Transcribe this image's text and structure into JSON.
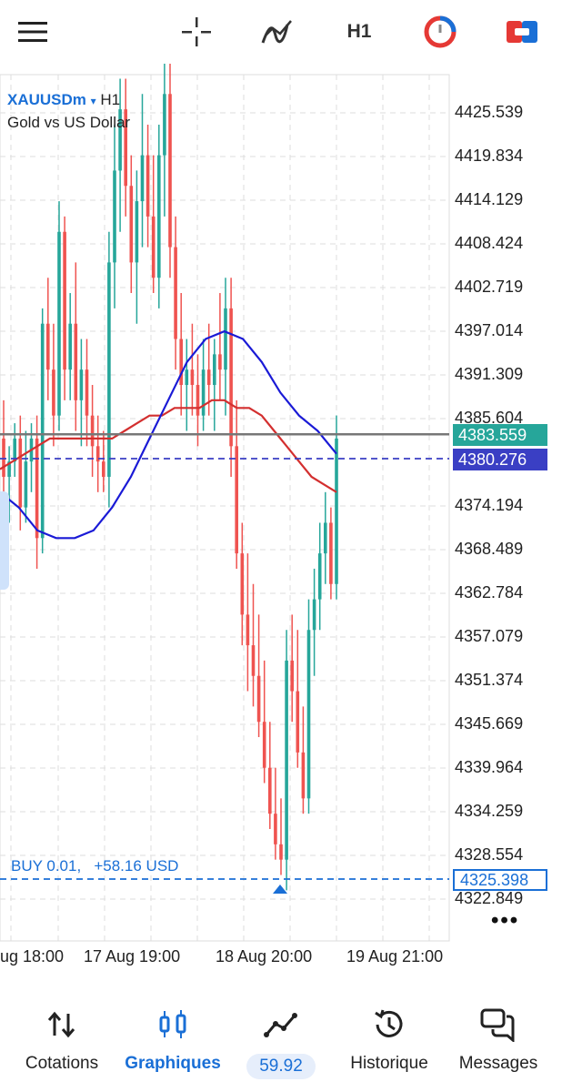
{
  "toolbar": {
    "menu_icon": "hamburger-icon",
    "crosshair_icon": "crosshair-icon",
    "indicators_icon": "indicators-icon",
    "timeframe": "H1",
    "accent": "#1a6fd6"
  },
  "chart": {
    "symbol": "XAUUSDm",
    "symbol_arrow": "▾",
    "timeframe": "H1",
    "description": "Gold vs US Dollar",
    "price_labels": [
      "4425.539",
      "4419.834",
      "4414.129",
      "4408.424",
      "4402.719",
      "4397.014",
      "4391.309",
      "4385.604",
      "4374.194",
      "4368.489",
      "4362.784",
      "4357.079",
      "4351.374",
      "4345.669",
      "4339.964",
      "4334.259",
      "4328.554",
      "4322.849"
    ],
    "current_price_badge": "4383.559",
    "line_price_badge": "4380.276",
    "buy_price_badge": "4325.398",
    "buy_label": "BUY 0.01,   +58.16 USD",
    "time_labels": [
      "ug 18:00",
      "17 Aug 19:00",
      "18 Aug 20:00",
      "19 Aug 21:00"
    ],
    "more_icon": "more-dots-icon",
    "colors": {
      "bull": "#26a69a",
      "bear": "#ef5350",
      "ma_red": "#d32f2f",
      "ma_blue": "#1a1ad6",
      "badge_green": "#26a69a",
      "badge_blue": "#3a3fc4",
      "buy_blue": "#1a6fd6"
    }
  },
  "chart_data": {
    "type": "candlestick",
    "symbol": "XAUUSDm",
    "timeframe": "H1",
    "ylim": [
      4318,
      4433
    ],
    "current_price": 4383.559,
    "buy_price": 4325.398,
    "candles": [
      [
        4383,
        4388,
        4370,
        4378
      ],
      [
        4378,
        4382,
        4372,
        4380
      ],
      [
        4380,
        4385,
        4378,
        4383
      ],
      [
        4383,
        4386,
        4371,
        4374
      ],
      [
        4374,
        4384,
        4372,
        4380
      ],
      [
        4380,
        4385,
        4376,
        4383
      ],
      [
        4383,
        4386,
        4366,
        4370
      ],
      [
        4370,
        4400,
        4368,
        4398
      ],
      [
        4398,
        4404,
        4388,
        4392
      ],
      [
        4392,
        4398,
        4382,
        4386
      ],
      [
        4386,
        4414,
        4384,
        4410
      ],
      [
        4410,
        4412,
        4388,
        4392
      ],
      [
        4392,
        4402,
        4388,
        4398
      ],
      [
        4398,
        4406,
        4384,
        4388
      ],
      [
        4388,
        4396,
        4382,
        4392
      ],
      [
        4392,
        4396,
        4382,
        4386
      ],
      [
        4386,
        4390,
        4378,
        4382
      ],
      [
        4382,
        4386,
        4376,
        4380
      ],
      [
        4380,
        4384,
        4376,
        4378
      ],
      [
        4378,
        4410,
        4374,
        4406
      ],
      [
        4406,
        4424,
        4400,
        4418
      ],
      [
        4418,
        4430,
        4410,
        4426
      ],
      [
        4426,
        4430,
        4412,
        4416
      ],
      [
        4416,
        4420,
        4402,
        4406
      ],
      [
        4406,
        4418,
        4398,
        4414
      ],
      [
        4414,
        4428,
        4408,
        4420
      ],
      [
        4420,
        4424,
        4408,
        4412
      ],
      [
        4412,
        4420,
        4402,
        4404
      ],
      [
        4404,
        4424,
        4400,
        4420
      ],
      [
        4420,
        4432,
        4412,
        4428
      ],
      [
        4428,
        4433,
        4404,
        4408
      ],
      [
        4408,
        4412,
        4392,
        4396
      ],
      [
        4396,
        4402,
        4386,
        4390
      ],
      [
        4390,
        4396,
        4384,
        4392
      ],
      [
        4392,
        4398,
        4386,
        4390
      ],
      [
        4390,
        4394,
        4382,
        4386
      ],
      [
        4386,
        4396,
        4384,
        4392
      ],
      [
        4392,
        4398,
        4386,
        4390
      ],
      [
        4390,
        4396,
        4384,
        4394
      ],
      [
        4394,
        4402,
        4388,
        4392
      ],
      [
        4392,
        4404,
        4386,
        4400
      ],
      [
        4400,
        4404,
        4378,
        4382
      ],
      [
        4382,
        4388,
        4366,
        4368
      ],
      [
        4368,
        4372,
        4356,
        4360
      ],
      [
        4360,
        4368,
        4350,
        4356
      ],
      [
        4356,
        4364,
        4348,
        4352
      ],
      [
        4352,
        4360,
        4344,
        4346
      ],
      [
        4346,
        4354,
        4338,
        4340
      ],
      [
        4340,
        4346,
        4332,
        4334
      ],
      [
        4334,
        4340,
        4328,
        4330
      ],
      [
        4330,
        4336,
        4326,
        4328
      ],
      [
        4328,
        4358,
        4324,
        4354
      ],
      [
        4354,
        4360,
        4346,
        4350
      ],
      [
        4350,
        4358,
        4340,
        4342
      ],
      [
        4342,
        4348,
        4334,
        4336
      ],
      [
        4336,
        4362,
        4334,
        4358
      ],
      [
        4358,
        4366,
        4352,
        4362
      ],
      [
        4362,
        4372,
        4358,
        4368
      ],
      [
        4368,
        4376,
        4364,
        4372
      ],
      [
        4372,
        4374,
        4362,
        4364
      ],
      [
        4364,
        4386,
        4362,
        4383
      ]
    ],
    "ma_red": [
      4379,
      4380,
      4381,
      4382,
      4383,
      4383,
      4383,
      4383,
      4383,
      4383,
      4384,
      4385,
      4386,
      4386,
      4387,
      4387,
      4387,
      4388,
      4388,
      4387,
      4387,
      4386,
      4384,
      4382,
      4380,
      4378,
      4377,
      4376
    ],
    "ma_blue": [
      4376,
      4374,
      4371,
      4370,
      4370,
      4371,
      4374,
      4378,
      4383,
      4388,
      4393,
      4396,
      4397,
      4396,
      4393,
      4389,
      4386,
      4384,
      4381
    ],
    "time_labels": [
      "ug 18:00",
      "17 Aug 19:00",
      "18 Aug 20:00",
      "19 Aug 21:00"
    ]
  },
  "nav": {
    "items": [
      {
        "label": "Cotations",
        "icon": "quotes-arrows-icon"
      },
      {
        "label": "Graphiques",
        "icon": "chart-candles-icon"
      },
      {
        "label": "59.92",
        "icon": "trade-icon"
      },
      {
        "label": "Historique",
        "icon": "history-icon"
      },
      {
        "label": "Messages",
        "icon": "messages-icon"
      }
    ]
  }
}
